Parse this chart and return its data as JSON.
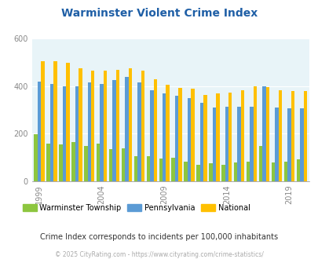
{
  "title": "Warminster Violent Crime Index",
  "years": [
    1999,
    2000,
    2001,
    2002,
    2003,
    2004,
    2005,
    2006,
    2007,
    2008,
    2009,
    2010,
    2011,
    2012,
    2013,
    2014,
    2015,
    2016,
    2017,
    2018,
    2019,
    2020
  ],
  "warminster": [
    197,
    160,
    155,
    165,
    150,
    158,
    135,
    140,
    107,
    107,
    95,
    100,
    83,
    70,
    75,
    68,
    80,
    82,
    150,
    80,
    83,
    92
  ],
  "pennsylvania": [
    420,
    410,
    400,
    400,
    415,
    410,
    425,
    440,
    415,
    385,
    370,
    360,
    350,
    330,
    310,
    315,
    315,
    315,
    400,
    310,
    308,
    308
  ],
  "national": [
    507,
    507,
    500,
    475,
    465,
    465,
    470,
    475,
    465,
    430,
    405,
    395,
    390,
    365,
    370,
    375,
    383,
    400,
    398,
    385,
    380,
    379
  ],
  "bar_colors": {
    "warminster": "#8dc63f",
    "pennsylvania": "#5b9bd5",
    "national": "#ffc000"
  },
  "background_color": "#e8f4f8",
  "ylim": [
    0,
    600
  ],
  "yticks": [
    0,
    200,
    400,
    600
  ],
  "xlabel_ticks": [
    1999,
    2004,
    2009,
    2014,
    2019
  ],
  "legend_labels": [
    "Warminster Township",
    "Pennsylvania",
    "National"
  ],
  "note": "Crime Index corresponds to incidents per 100,000 inhabitants",
  "copyright": "© 2025 CityRating.com - https://www.cityrating.com/crime-statistics/",
  "title_color": "#1f5fa6",
  "note_color": "#333333",
  "copyright_color": "#aaaaaa",
  "grid_color": "#ffffff",
  "axis_color": "#888888"
}
